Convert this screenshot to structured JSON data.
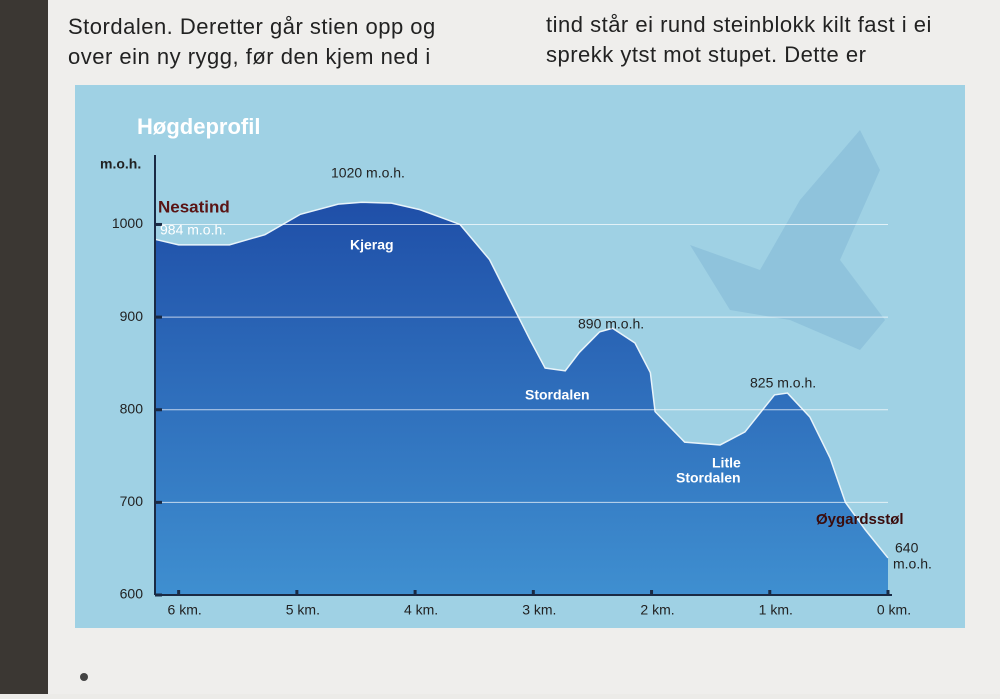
{
  "sign_text": {
    "left": [
      "Stordalen. Deretter går stien opp og",
      "over ein ny rygg, før den kjem ned i"
    ],
    "right": [
      "tind står ei rund steinblokk kilt fast i ei",
      "sprekk ytst mot stupet. Dette er"
    ]
  },
  "chart_data": {
    "type": "area",
    "title": "Høgdeprofil",
    "y_label": "m.o.h.",
    "x": [
      6.2,
      6.0,
      5.57,
      5.27,
      4.97,
      4.65,
      4.45,
      4.2,
      3.96,
      3.62,
      3.37,
      3.2,
      3.03,
      2.9,
      2.73,
      2.61,
      2.44,
      2.33,
      2.14,
      2.01,
      1.97,
      1.72,
      1.42,
      1.21,
      0.96,
      0.85,
      0.66,
      0.49,
      0.36,
      0.19,
      0
    ],
    "series": [
      {
        "color": "#2a5cae",
        "values": [
          984,
          978,
          978,
          989,
          1011,
          1022,
          1024,
          1023,
          1016,
          1000,
          962,
          919,
          876,
          845,
          842,
          862,
          884,
          888,
          872,
          840,
          798,
          765,
          762,
          776,
          816,
          818,
          792,
          748,
          700,
          670,
          640
        ]
      }
    ],
    "xlim": [
      6.2,
      0
    ],
    "ylim": [
      600,
      1075
    ],
    "xticks": [
      {
        "value": 6,
        "label": "6 km."
      },
      {
        "value": 5,
        "label": "5 km."
      },
      {
        "value": 4,
        "label": "4 km."
      },
      {
        "value": 3,
        "label": "3 km."
      },
      {
        "value": 2,
        "label": "2 km."
      },
      {
        "value": 1,
        "label": "1 km."
      },
      {
        "value": 0,
        "label": "0 km."
      }
    ],
    "yticks": [
      600,
      700,
      800,
      900,
      1000
    ],
    "grid": true,
    "annotations": [
      "Nesatind",
      "984 m.o.h.",
      "1020 m.o.h.",
      "Kjerag",
      "890 m.o.h.",
      "Stordalen",
      "825 m.o.h.",
      "Litle",
      "Stordalen",
      "Øygardsstøl",
      "640",
      "m.o.h."
    ]
  }
}
